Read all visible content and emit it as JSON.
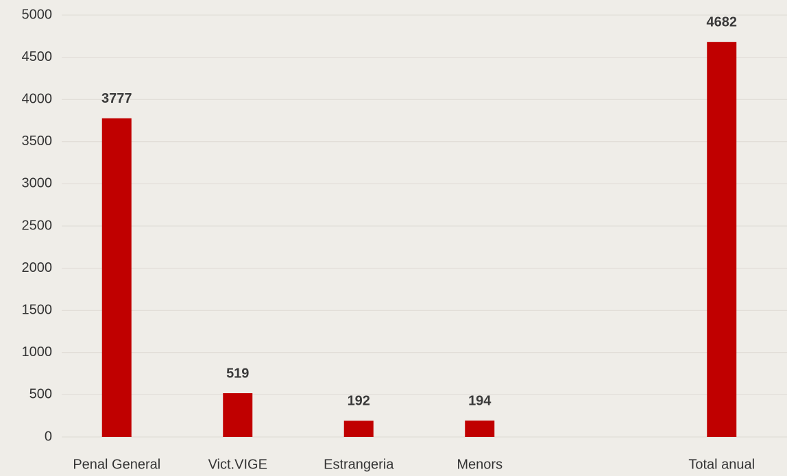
{
  "chart_data": {
    "type": "bar",
    "categories": [
      "Penal General",
      "Vict.VIGE",
      "Estrangeria",
      "Menors",
      null,
      "Total anual"
    ],
    "values": [
      3777,
      519,
      192,
      194,
      null,
      4682
    ],
    "color": "#c00000",
    "ylim": [
      0,
      5000
    ],
    "yticks": [
      0,
      500,
      1000,
      1500,
      2000,
      2500,
      3000,
      3500,
      4000,
      4500,
      5000
    ],
    "grid": true
  }
}
